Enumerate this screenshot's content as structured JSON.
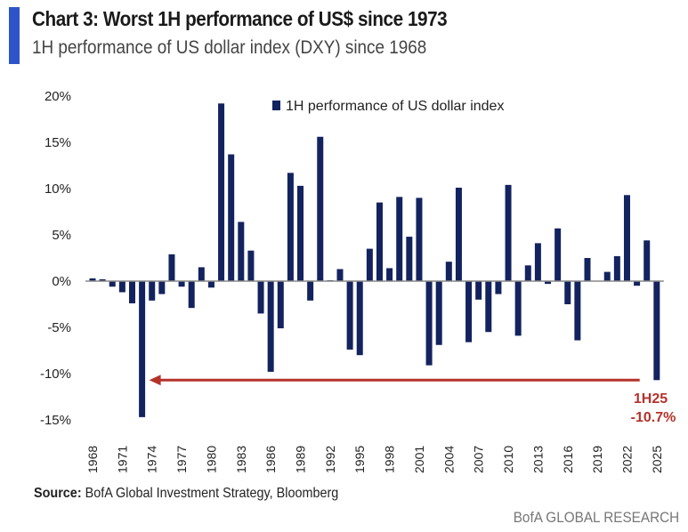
{
  "header": {
    "title": "Chart 3: Worst 1H performance of US$ since 1973",
    "subtitle": "1H performance of US dollar index (DXY) since 1968",
    "accent_color": "#2e55c8"
  },
  "footer": {
    "source_label": "Source:",
    "source_text": " BofA Global Investment Strategy, Bloomberg",
    "brand": "BofA GLOBAL RESEARCH"
  },
  "chart_data": {
    "type": "bar",
    "title": "Chart 3: Worst 1H performance of US$ since 1973",
    "xlabel": "",
    "ylabel": "",
    "ylim": [
      -15,
      20
    ],
    "yticks": [
      "-15%",
      "-10%",
      "-5%",
      "0%",
      "5%",
      "10%",
      "15%",
      "20%"
    ],
    "ytick_values": [
      -15,
      -10,
      -5,
      0,
      5,
      10,
      15,
      20
    ],
    "xtick_labels": [
      "1968",
      "1971",
      "1974",
      "1977",
      "1980",
      "1983",
      "1986",
      "1989",
      "1992",
      "1995",
      "1998",
      "2001",
      "2004",
      "2007",
      "2010",
      "2013",
      "2016",
      "2019",
      "2022",
      "2025"
    ],
    "legend": {
      "position": "top-center",
      "entries": [
        "1H performance of US dollar index"
      ]
    },
    "bar_color": "#13235f",
    "annotation": {
      "line1": "1H25",
      "line2": "-10.7%",
      "color": "#b5322b",
      "arrow_from_year": 2024,
      "arrow_to_year": 1973,
      "arrow_value": -10.7
    },
    "categories": [
      1968,
      1969,
      1970,
      1971,
      1972,
      1973,
      1974,
      1975,
      1976,
      1977,
      1978,
      1979,
      1980,
      1981,
      1982,
      1983,
      1984,
      1985,
      1986,
      1987,
      1988,
      1989,
      1990,
      1991,
      1992,
      1993,
      1994,
      1995,
      1996,
      1997,
      1998,
      1999,
      2000,
      2001,
      2002,
      2003,
      2004,
      2005,
      2006,
      2007,
      2008,
      2009,
      2010,
      2011,
      2012,
      2013,
      2014,
      2015,
      2016,
      2017,
      2018,
      2019,
      2020,
      2021,
      2022,
      2023,
      2024,
      2025
    ],
    "values": [
      0.3,
      0.2,
      -0.6,
      -1.2,
      -2.4,
      -14.7,
      -2.1,
      -1.4,
      2.9,
      -0.6,
      -2.9,
      1.5,
      -0.7,
      19.2,
      13.7,
      6.4,
      3.3,
      -3.5,
      -9.8,
      -5.1,
      11.7,
      10.3,
      -2.1,
      15.6,
      0.1,
      1.3,
      -7.4,
      -8.0,
      3.5,
      8.5,
      1.4,
      9.1,
      4.8,
      9.0,
      -9.1,
      -6.9,
      2.1,
      10.1,
      -6.6,
      -2.0,
      -5.5,
      -1.4,
      10.4,
      -5.9,
      1.7,
      4.1,
      -0.3,
      5.7,
      -2.5,
      -6.4,
      2.5,
      0.0,
      1.0,
      2.7,
      9.3,
      -0.5,
      4.4,
      -10.7
    ]
  }
}
